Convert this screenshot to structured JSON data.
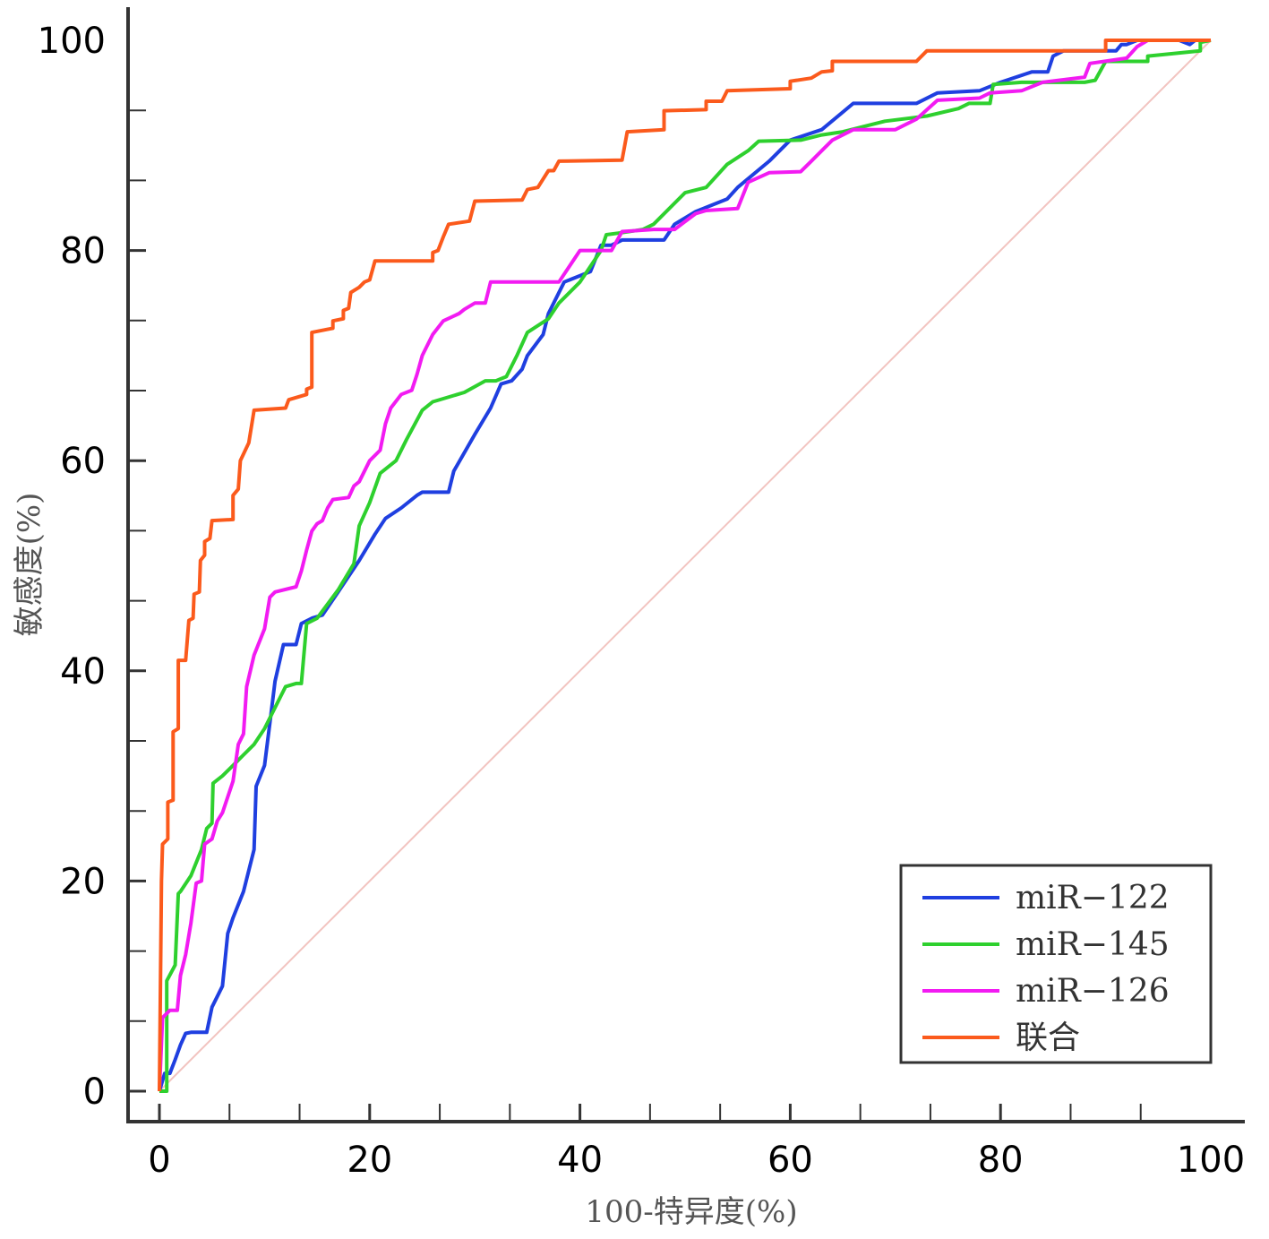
{
  "chart_data": {
    "type": "line",
    "title": "",
    "xlabel": "100-特异度(%)",
    "ylabel": "敏感度(%)",
    "xlim": [
      0,
      100
    ],
    "ylim": [
      0,
      100
    ],
    "xticks": [
      0,
      20,
      40,
      60,
      80,
      100
    ],
    "yticks": [
      0,
      20,
      40,
      60,
      80,
      100
    ],
    "xtick_labels": [
      "0",
      "20",
      "40",
      "60",
      "80",
      "100"
    ],
    "ytick_labels": [
      "0",
      "20",
      "40",
      "60",
      "80",
      "100"
    ],
    "legend_position": "bottom-right",
    "reference_line": {
      "name": "diagonal",
      "color": "#f2c4c0",
      "points": [
        [
          0,
          0
        ],
        [
          100,
          100
        ]
      ]
    },
    "series": [
      {
        "name": "miR−122",
        "color": "#1f3fe0",
        "points": [
          [
            0,
            0
          ],
          [
            0.5,
            1.7
          ],
          [
            1,
            1.7
          ],
          [
            1.5,
            3
          ],
          [
            2,
            4.4
          ],
          [
            2.5,
            5.5
          ],
          [
            3,
            5.6
          ],
          [
            4.5,
            5.6
          ],
          [
            5,
            8
          ],
          [
            6,
            10
          ],
          [
            6.5,
            15
          ],
          [
            7,
            16.5
          ],
          [
            8,
            19
          ],
          [
            9,
            23
          ],
          [
            9.2,
            29
          ],
          [
            10,
            31
          ],
          [
            10.5,
            35
          ],
          [
            11,
            39
          ],
          [
            11.8,
            42.5
          ],
          [
            13,
            42.5
          ],
          [
            13.5,
            44.5
          ],
          [
            14.5,
            45
          ],
          [
            15.5,
            45.3
          ],
          [
            17,
            47.5
          ],
          [
            19,
            50.5
          ],
          [
            20.5,
            53
          ],
          [
            21.5,
            54.5
          ],
          [
            23,
            55.5
          ],
          [
            24.5,
            56.7
          ],
          [
            25,
            57
          ],
          [
            27.5,
            57
          ],
          [
            28,
            59
          ],
          [
            30,
            62.5
          ],
          [
            31.5,
            65
          ],
          [
            32.5,
            67.3
          ],
          [
            33.5,
            67.6
          ],
          [
            34.5,
            68.7
          ],
          [
            35,
            70
          ],
          [
            36.5,
            72
          ],
          [
            37,
            74
          ],
          [
            38.5,
            77
          ],
          [
            41,
            78
          ],
          [
            42,
            80.5
          ],
          [
            43,
            80.5
          ],
          [
            44,
            81
          ],
          [
            48,
            81
          ],
          [
            49,
            82.5
          ],
          [
            51,
            83.7
          ],
          [
            54,
            84.9
          ],
          [
            55,
            86
          ],
          [
            58,
            88.5
          ],
          [
            60,
            90.5
          ],
          [
            63,
            91.5
          ],
          [
            66,
            94
          ],
          [
            72,
            94
          ],
          [
            74,
            95
          ],
          [
            78,
            95.2
          ],
          [
            80,
            96
          ],
          [
            83,
            97
          ],
          [
            84.5,
            97
          ],
          [
            85,
            98.5
          ],
          [
            86,
            99
          ],
          [
            91,
            99
          ],
          [
            91.5,
            99.6
          ],
          [
            92,
            99.6
          ],
          [
            93,
            100
          ],
          [
            97,
            100
          ],
          [
            98,
            99.6
          ],
          [
            98.5,
            100
          ],
          [
            100,
            100
          ]
        ]
      },
      {
        "name": "miR−145",
        "color": "#2ed02e",
        "points": [
          [
            0,
            0
          ],
          [
            0.7,
            0
          ],
          [
            0.7,
            10.5
          ],
          [
            1.5,
            12
          ],
          [
            1.8,
            18.8
          ],
          [
            2,
            19
          ],
          [
            3,
            20.5
          ],
          [
            4,
            23
          ],
          [
            4.5,
            25
          ],
          [
            5,
            25.5
          ],
          [
            5.1,
            29.3
          ],
          [
            6,
            30
          ],
          [
            7,
            31
          ],
          [
            8,
            32
          ],
          [
            9,
            33
          ],
          [
            10,
            34.5
          ],
          [
            11,
            36.5
          ],
          [
            12,
            38.5
          ],
          [
            13,
            38.8
          ],
          [
            13.5,
            38.8
          ],
          [
            14,
            44.5
          ],
          [
            15,
            45
          ],
          [
            17,
            47.7
          ],
          [
            18.5,
            50.2
          ],
          [
            19,
            53.8
          ],
          [
            20,
            56
          ],
          [
            21,
            58.8
          ],
          [
            22.5,
            60
          ],
          [
            23.5,
            62
          ],
          [
            25,
            64.8
          ],
          [
            26,
            65.6
          ],
          [
            27,
            65.9
          ],
          [
            29,
            66.5
          ],
          [
            31,
            67.6
          ],
          [
            32,
            67.6
          ],
          [
            33,
            68
          ],
          [
            34,
            70
          ],
          [
            35,
            72.2
          ],
          [
            37,
            73.5
          ],
          [
            38,
            75
          ],
          [
            40,
            77
          ],
          [
            42,
            80
          ],
          [
            42.5,
            81.5
          ],
          [
            44,
            81.7
          ],
          [
            46,
            82
          ],
          [
            47,
            82.5
          ],
          [
            50,
            85.5
          ],
          [
            52,
            86
          ],
          [
            54,
            88.2
          ],
          [
            56,
            89.5
          ],
          [
            57,
            90.4
          ],
          [
            61,
            90.5
          ],
          [
            63,
            91
          ],
          [
            65,
            91.3
          ],
          [
            69,
            92.3
          ],
          [
            73,
            92.8
          ],
          [
            76,
            93.5
          ],
          [
            77,
            94
          ],
          [
            79,
            94
          ],
          [
            79.3,
            95.8
          ],
          [
            82,
            96
          ],
          [
            86,
            96
          ],
          [
            88,
            96
          ],
          [
            89,
            96.2
          ],
          [
            90,
            98
          ],
          [
            94,
            98
          ],
          [
            94,
            98.5
          ],
          [
            97,
            98.8
          ],
          [
            99,
            99
          ],
          [
            99,
            99.8
          ],
          [
            100,
            100
          ]
        ]
      },
      {
        "name": "miR−126",
        "color": "#f21bf2",
        "points": [
          [
            0,
            0
          ],
          [
            0.3,
            7
          ],
          [
            1,
            7.7
          ],
          [
            1.7,
            7.7
          ],
          [
            2,
            11
          ],
          [
            2.5,
            13
          ],
          [
            3,
            16
          ],
          [
            3.5,
            19.8
          ],
          [
            4,
            20
          ],
          [
            4.3,
            23.5
          ],
          [
            5,
            24
          ],
          [
            5.5,
            25.7
          ],
          [
            6,
            26.5
          ],
          [
            7,
            29.5
          ],
          [
            7.5,
            33
          ],
          [
            8,
            34
          ],
          [
            8.3,
            38.5
          ],
          [
            9,
            41.5
          ],
          [
            10,
            44
          ],
          [
            10.5,
            47
          ],
          [
            11,
            47.5
          ],
          [
            13,
            48
          ],
          [
            13.5,
            49.5
          ],
          [
            14,
            51.5
          ],
          [
            14.5,
            53.3
          ],
          [
            15,
            54
          ],
          [
            15.5,
            54.3
          ],
          [
            16,
            55.5
          ],
          [
            16.5,
            56.3
          ],
          [
            18,
            56.5
          ],
          [
            18.5,
            57.6
          ],
          [
            19,
            58
          ],
          [
            20,
            60
          ],
          [
            21,
            61
          ],
          [
            21.5,
            63.5
          ],
          [
            22,
            65
          ],
          [
            23,
            66.3
          ],
          [
            24,
            66.7
          ],
          [
            24.5,
            68.2
          ],
          [
            25,
            70
          ],
          [
            26,
            72
          ],
          [
            27,
            73.3
          ],
          [
            28.5,
            74
          ],
          [
            29,
            74.4
          ],
          [
            30,
            75
          ],
          [
            31,
            75
          ],
          [
            31.5,
            77
          ],
          [
            38,
            77
          ],
          [
            40,
            80
          ],
          [
            43,
            80
          ],
          [
            44,
            81.8
          ],
          [
            47,
            82
          ],
          [
            49,
            82
          ],
          [
            51,
            83.5
          ],
          [
            52,
            83.8
          ],
          [
            55,
            84
          ],
          [
            56,
            86.5
          ],
          [
            58,
            87.4
          ],
          [
            61,
            87.5
          ],
          [
            62,
            88.5
          ],
          [
            63,
            89.5
          ],
          [
            64,
            90.5
          ],
          [
            66,
            91.5
          ],
          [
            70,
            91.5
          ],
          [
            72,
            92.5
          ],
          [
            74,
            94.3
          ],
          [
            78,
            94.5
          ],
          [
            79,
            95
          ],
          [
            82,
            95.2
          ],
          [
            84,
            96
          ],
          [
            88,
            96.5
          ],
          [
            88.5,
            97.8
          ],
          [
            92,
            98.3
          ],
          [
            93,
            99.4
          ],
          [
            94,
            100
          ],
          [
            100,
            100
          ]
        ]
      },
      {
        "name": "联合",
        "color": "#fb5a1c",
        "points": [
          [
            0,
            0
          ],
          [
            0.2,
            20
          ],
          [
            0.3,
            23.5
          ],
          [
            0.8,
            24
          ],
          [
            0.8,
            27.5
          ],
          [
            1.3,
            27.7
          ],
          [
            1.3,
            34.2
          ],
          [
            1.8,
            34.5
          ],
          [
            1.8,
            41
          ],
          [
            2.5,
            41
          ],
          [
            2.8,
            44.8
          ],
          [
            3.2,
            45
          ],
          [
            3.3,
            47.3
          ],
          [
            3.8,
            47.5
          ],
          [
            3.9,
            50.5
          ],
          [
            4.3,
            51
          ],
          [
            4.3,
            52.3
          ],
          [
            4.8,
            52.6
          ],
          [
            5,
            54.3
          ],
          [
            7,
            54.4
          ],
          [
            7,
            56.7
          ],
          [
            7.5,
            57.3
          ],
          [
            7.7,
            60
          ],
          [
            8.5,
            61.7
          ],
          [
            9,
            64.8
          ],
          [
            12,
            65
          ],
          [
            12.3,
            65.8
          ],
          [
            14,
            66.3
          ],
          [
            14,
            66.8
          ],
          [
            14.5,
            67
          ],
          [
            14.5,
            72.2
          ],
          [
            16,
            72.5
          ],
          [
            16.5,
            72.6
          ],
          [
            16.5,
            73.3
          ],
          [
            17.5,
            73.5
          ],
          [
            17.5,
            74.3
          ],
          [
            18,
            74.5
          ],
          [
            18.2,
            76
          ],
          [
            19,
            76.5
          ],
          [
            19.5,
            77
          ],
          [
            20,
            77.2
          ],
          [
            20.5,
            79
          ],
          [
            26,
            79
          ],
          [
            26,
            79.8
          ],
          [
            26.5,
            80
          ],
          [
            27,
            81.3
          ],
          [
            27.5,
            82.5
          ],
          [
            29.5,
            82.8
          ],
          [
            30,
            84.7
          ],
          [
            34.5,
            84.8
          ],
          [
            35,
            85.8
          ],
          [
            36,
            86
          ],
          [
            36.5,
            86.8
          ],
          [
            37,
            87.6
          ],
          [
            37.5,
            87.6
          ],
          [
            38,
            88.5
          ],
          [
            44,
            88.6
          ],
          [
            44.5,
            91.3
          ],
          [
            48,
            91.5
          ],
          [
            48,
            93.3
          ],
          [
            52,
            93.4
          ],
          [
            52,
            94.2
          ],
          [
            53.5,
            94.2
          ],
          [
            54,
            95.2
          ],
          [
            60,
            95.4
          ],
          [
            60,
            96.1
          ],
          [
            62,
            96.4
          ],
          [
            63,
            97
          ],
          [
            64,
            97.1
          ],
          [
            64,
            98
          ],
          [
            72,
            98
          ],
          [
            73,
            99
          ],
          [
            90,
            99
          ],
          [
            90,
            100
          ],
          [
            100,
            100
          ]
        ]
      }
    ]
  }
}
